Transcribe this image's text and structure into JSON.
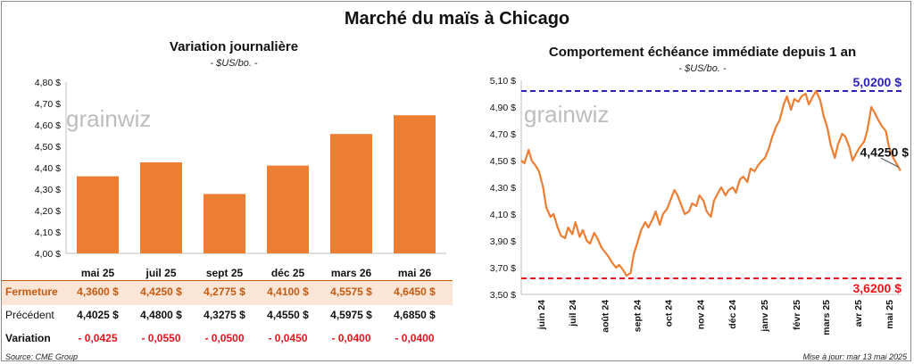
{
  "header": {
    "title": "Marché du maïs à Chicago"
  },
  "colors": {
    "bar": "#ED7D31",
    "line": "#ED7D31",
    "high_line": "#2B22B8",
    "low_line": "#E8141B",
    "fermeture_row": "#FBE5D6"
  },
  "watermark": "grainwiz",
  "left_chart": {
    "title": "Variation journalière",
    "subtitle": "- $US/bo. -"
  },
  "right_chart": {
    "title": "Comportement échéance immédiate depuis 1 an",
    "subtitle": "- $US/bo. -"
  },
  "table": {
    "rows": [
      {
        "label": "Fermeture",
        "values": [
          "4,3600  $",
          "4,4250  $",
          "4,2775  $",
          "4,4100  $",
          "4,5575  $",
          "4,6450  $"
        ]
      },
      {
        "label": "Précédent",
        "values": [
          "4,4025  $",
          "4,4800  $",
          "4,3275  $",
          "4,4550  $",
          "4,5975  $",
          "4,6850  $"
        ]
      },
      {
        "label": "Variation",
        "values": [
          "- 0,0425",
          "- 0,0550",
          "- 0,0500",
          "- 0,0450",
          "- 0,0400",
          "- 0,0400"
        ]
      }
    ]
  },
  "footer": {
    "source": "Source: CME Group",
    "updated": "Mise à jour: mar 13 mai 2025"
  },
  "chart_data": [
    {
      "type": "bar",
      "title": "Variation journalière",
      "subtitle": "- $US/bo. -",
      "categories": [
        "mai 25",
        "juil 25",
        "sept 25",
        "déc 25",
        "mars 26",
        "mai 26"
      ],
      "values": [
        4.36,
        4.425,
        4.2775,
        4.41,
        4.5575,
        4.645
      ],
      "ylim": [
        4.0,
        4.8
      ],
      "yticks": [
        "4,00 $",
        "4,10 $",
        "4,20 $",
        "4,30 $",
        "4,40 $",
        "4,50 $",
        "4,60 $",
        "4,70 $",
        "4,80 $"
      ],
      "grid": false
    },
    {
      "type": "line",
      "title": "Comportement échéance immédiate depuis 1 an",
      "subtitle": "- $US/bo. -",
      "ylim": [
        3.5,
        5.1
      ],
      "yticks": [
        "3,50 $",
        "3,70 $",
        "3,90 $",
        "4,10 $",
        "4,30 $",
        "4,50 $",
        "4,70 $",
        "4,90 $",
        "5,10 $"
      ],
      "xticks": [
        "juin 24",
        "juil 24",
        "août 24",
        "sept 24",
        "oct 24",
        "nov 24",
        "déc 24",
        "janv 25",
        "févr 25",
        "mars 25",
        "avr 25",
        "mai 25"
      ],
      "high": {
        "value": 5.02,
        "label": "5,0200 $"
      },
      "low": {
        "value": 3.62,
        "label": "3,6200 $"
      },
      "last": {
        "value": 4.425,
        "label": "4,4250 $"
      },
      "series": [
        {
          "x": [
            "2024-05-13",
            "2024-05-16",
            "2024-05-20",
            "2024-05-23",
            "2024-05-27",
            "2024-05-30",
            "2024-06-03",
            "2024-06-06",
            "2024-06-10",
            "2024-06-13",
            "2024-06-17",
            "2024-06-20",
            "2024-06-24",
            "2024-06-27",
            "2024-07-01",
            "2024-07-04",
            "2024-07-08",
            "2024-07-11",
            "2024-07-15",
            "2024-07-18",
            "2024-07-22",
            "2024-07-25",
            "2024-07-29",
            "2024-08-01",
            "2024-08-05",
            "2024-08-08",
            "2024-08-12",
            "2024-08-15",
            "2024-08-19",
            "2024-08-22",
            "2024-08-26",
            "2024-08-29",
            "2024-09-02",
            "2024-09-05",
            "2024-09-09",
            "2024-09-12",
            "2024-09-16",
            "2024-09-19",
            "2024-09-23",
            "2024-09-26",
            "2024-09-30",
            "2024-10-03",
            "2024-10-07",
            "2024-10-10",
            "2024-10-14",
            "2024-10-17",
            "2024-10-21",
            "2024-10-24",
            "2024-10-28",
            "2024-10-31",
            "2024-11-04",
            "2024-11-07",
            "2024-11-11",
            "2024-11-14",
            "2024-11-18",
            "2024-11-21",
            "2024-11-25",
            "2024-11-28",
            "2024-12-02",
            "2024-12-05",
            "2024-12-09",
            "2024-12-12",
            "2024-12-16",
            "2024-12-19",
            "2024-12-23",
            "2024-12-26",
            "2024-12-30",
            "2025-01-02",
            "2025-01-06",
            "2025-01-09",
            "2025-01-13",
            "2025-01-16",
            "2025-01-20",
            "2025-01-23",
            "2025-01-27",
            "2025-01-30",
            "2025-02-03",
            "2025-02-06",
            "2025-02-10",
            "2025-02-13",
            "2025-02-17",
            "2025-02-20",
            "2025-02-24",
            "2025-02-27",
            "2025-03-03",
            "2025-03-06",
            "2025-03-10",
            "2025-03-13",
            "2025-03-17",
            "2025-03-20",
            "2025-03-24",
            "2025-03-27",
            "2025-03-31",
            "2025-04-03",
            "2025-04-07",
            "2025-04-10",
            "2025-04-14",
            "2025-04-17",
            "2025-04-21",
            "2025-04-24",
            "2025-04-28",
            "2025-05-01",
            "2025-05-05",
            "2025-05-08",
            "2025-05-12"
          ],
          "y": [
            4.5,
            4.48,
            4.58,
            4.5,
            4.46,
            4.42,
            4.3,
            4.15,
            4.08,
            4.1,
            4.0,
            3.94,
            3.92,
            4.0,
            3.95,
            4.04,
            3.93,
            3.98,
            3.9,
            3.88,
            3.96,
            3.92,
            3.85,
            3.82,
            3.78,
            3.74,
            3.7,
            3.72,
            3.68,
            3.64,
            3.66,
            3.8,
            3.9,
            3.98,
            4.04,
            4.0,
            4.06,
            4.12,
            4.02,
            4.1,
            4.14,
            4.2,
            4.28,
            4.24,
            4.16,
            4.1,
            4.12,
            4.18,
            4.16,
            4.24,
            4.2,
            4.12,
            4.08,
            4.2,
            4.26,
            4.3,
            4.24,
            4.28,
            4.3,
            4.26,
            4.36,
            4.38,
            4.34,
            4.44,
            4.42,
            4.46,
            4.5,
            4.52,
            4.6,
            4.68,
            4.76,
            4.8,
            4.92,
            4.98,
            4.88,
            4.96,
            4.94,
            4.98,
            5.0,
            4.92,
            4.98,
            5.02,
            4.95,
            4.84,
            4.74,
            4.62,
            4.52,
            4.62,
            4.7,
            4.68,
            4.6,
            4.5,
            4.56,
            4.6,
            4.64,
            4.72,
            4.9,
            4.86,
            4.8,
            4.76,
            4.72,
            4.6,
            4.52,
            4.48,
            4.425
          ]
        }
      ]
    }
  ]
}
